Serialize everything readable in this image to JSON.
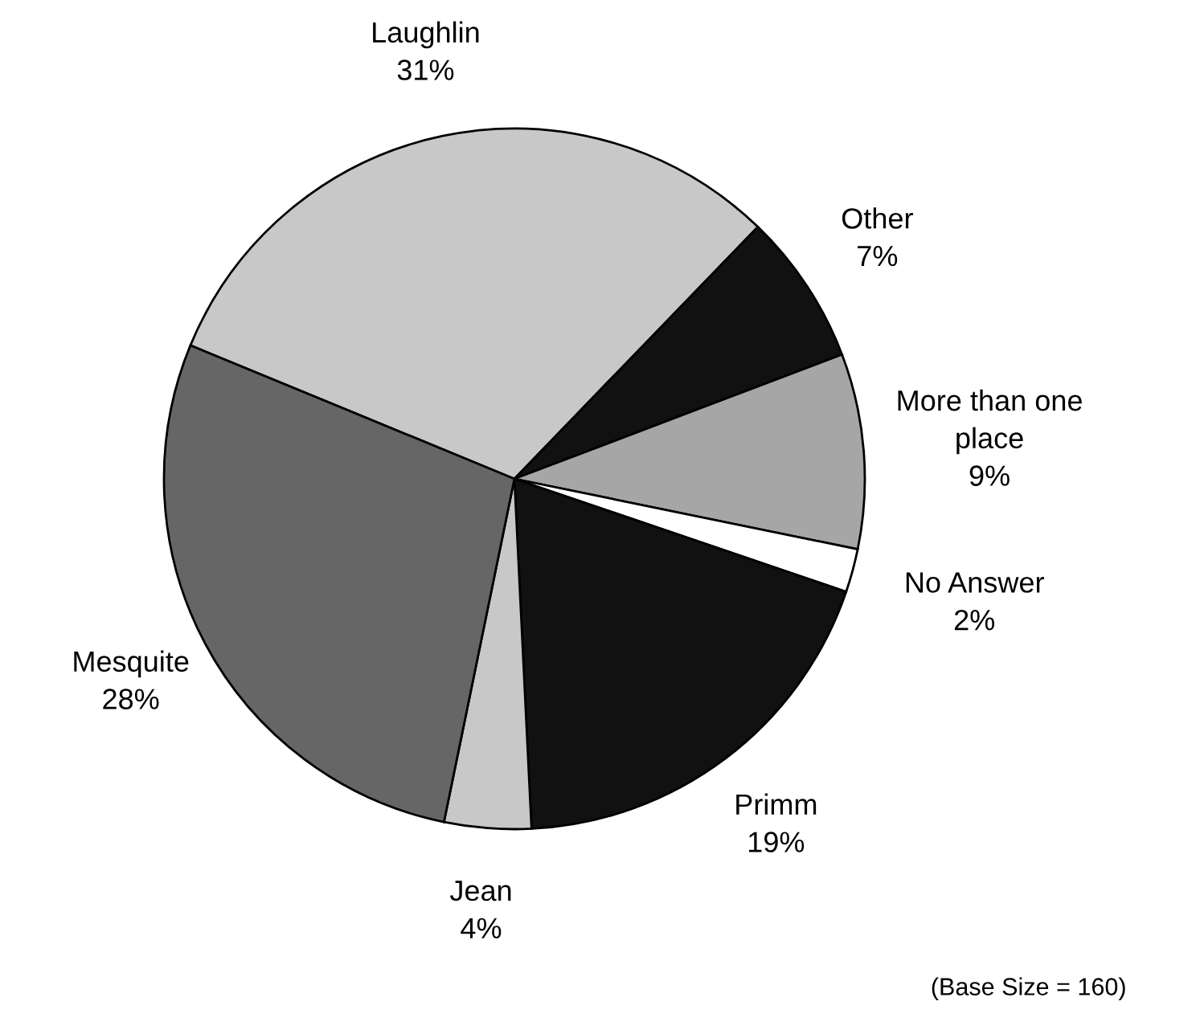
{
  "chart_data": {
    "type": "pie",
    "categories": [
      "Laughlin",
      "Other",
      "More than one\nplace",
      "No Answer",
      "Primm",
      "Jean",
      "Mesquite"
    ],
    "values": [
      31,
      7,
      9,
      2,
      19,
      4,
      28
    ],
    "value_labels": [
      "31%",
      "7%",
      "9%",
      "2%",
      "19%",
      "4%",
      "28%"
    ],
    "colors": [
      "#c8c8c8",
      "#111111",
      "#a6a6a6",
      "#ffffff",
      "#111111",
      "#c8c8c8",
      "#666666"
    ],
    "annotations": [
      "(Base Size = 160)"
    ]
  }
}
